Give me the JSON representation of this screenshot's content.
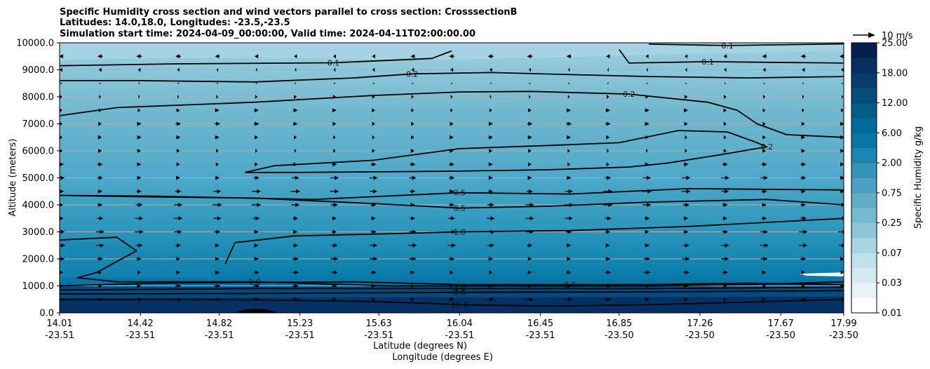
{
  "chart_data": {
    "type": "contour",
    "title_lines": [
      "Specific Humidity cross section and wind vectors parallel to cross section: CrosssectionB",
      "Latitudes: 14.0,18.0, Longitudes: -23.5,-23.5",
      "Simulation start time: 2024-04-09_00:00:00, Valid time: 2024-04-11T02:00:00.00"
    ],
    "ylabel": "Altitude (meters)",
    "xlabel_lat": "Latitude (degrees N)",
    "xlabel_lon": "Longitude (degrees E)",
    "ylim": [
      0,
      10000
    ],
    "yticks": [
      "0.0",
      "1000.0",
      "2000.0",
      "3000.0",
      "4000.0",
      "5000.0",
      "6000.0",
      "7000.0",
      "8000.0",
      "9000.0",
      "10000.0"
    ],
    "xticks": [
      {
        "lat": "14.01",
        "lon": "-23.51"
      },
      {
        "lat": "14.42",
        "lon": "-23.51"
      },
      {
        "lat": "14.82",
        "lon": "-23.51"
      },
      {
        "lat": "15.23",
        "lon": "-23.51"
      },
      {
        "lat": "15.63",
        "lon": "-23.51"
      },
      {
        "lat": "16.04",
        "lon": "-23.51"
      },
      {
        "lat": "16.45",
        "lon": "-23.51"
      },
      {
        "lat": "16.85",
        "lon": "-23.50"
      },
      {
        "lat": "17.26",
        "lon": "-23.50"
      },
      {
        "lat": "17.67",
        "lon": "-23.50"
      },
      {
        "lat": "17.99",
        "lon": "-23.50"
      }
    ],
    "colorbar": {
      "label": "Specific Humidity g/kg",
      "tick_labels": [
        "0.01",
        "0.03",
        "0.07",
        "0.25",
        "0.75",
        "2.00",
        "6.00",
        "12.00",
        "18.00",
        "25.00"
      ],
      "levels": [
        0.01,
        0.02,
        0.03,
        0.05,
        0.07,
        0.1,
        0.25,
        0.5,
        0.75,
        1.0,
        2.0,
        4.0,
        6.0,
        8.0,
        12.0,
        15.0,
        18.0,
        21.0,
        25.0
      ],
      "colors": [
        "#ffffff",
        "#e8f3f6",
        "#d4eaf0",
        "#c0e0ea",
        "#a9d3e1",
        "#8fc6d7",
        "#77b9ce",
        "#62adc8",
        "#4da1c0",
        "#3593b8",
        "#1c85b0",
        "#0877a6",
        "#026a98",
        "#035b88",
        "#054c79",
        "#063d6a",
        "#07305e",
        "#051f4e"
      ]
    },
    "quiver_key": "10 m/s",
    "contour_lines": [
      {
        "level": "0.1",
        "path": [
          [
            14.01,
            9150
          ],
          [
            14.6,
            9220
          ],
          [
            15.4,
            9260
          ],
          [
            15.9,
            9420
          ],
          [
            16.0,
            9700
          ]
        ]
      },
      {
        "level": "0.1",
        "path": [
          [
            16.85,
            9750
          ],
          [
            16.9,
            9250
          ],
          [
            17.3,
            9300
          ],
          [
            17.99,
            9250
          ]
        ]
      },
      {
        "level": "0.1",
        "path": [
          [
            17.0,
            9950
          ],
          [
            17.4,
            9900
          ],
          [
            17.99,
            9960
          ]
        ]
      },
      {
        "level": "0.2",
        "path": [
          [
            14.01,
            8600
          ],
          [
            14.4,
            8600
          ],
          [
            15.0,
            8550
          ],
          [
            15.5,
            8700
          ],
          [
            15.8,
            8850
          ],
          [
            16.2,
            8900
          ],
          [
            17.0,
            8750
          ],
          [
            17.5,
            8700
          ],
          [
            17.99,
            8750
          ]
        ]
      },
      {
        "level": "0.2",
        "path": [
          [
            14.01,
            7300
          ],
          [
            14.3,
            7600
          ],
          [
            15.0,
            7800
          ],
          [
            15.6,
            8050
          ],
          [
            16.04,
            8180
          ],
          [
            16.4,
            8200
          ],
          [
            16.9,
            8100
          ],
          [
            17.3,
            7800
          ],
          [
            17.45,
            7500
          ],
          [
            17.55,
            7000
          ],
          [
            17.7,
            6600
          ],
          [
            17.99,
            6500
          ]
        ]
      },
      {
        "level": "0.2",
        "path": [
          [
            14.95,
            5200
          ],
          [
            15.1,
            5450
          ],
          [
            15.6,
            5650
          ],
          [
            16.04,
            6080
          ],
          [
            16.5,
            6200
          ],
          [
            16.85,
            6300
          ],
          [
            17.15,
            6750
          ],
          [
            17.4,
            6700
          ],
          [
            17.55,
            6300
          ],
          [
            17.6,
            6150
          ],
          [
            17.4,
            5900
          ],
          [
            17.1,
            5550
          ],
          [
            16.9,
            5400
          ],
          [
            16.5,
            5300
          ],
          [
            16.04,
            5250
          ],
          [
            15.6,
            5220
          ],
          [
            15.2,
            5200
          ],
          [
            14.95,
            5200
          ]
        ]
      },
      {
        "level": "0.5",
        "path": [
          [
            14.01,
            4350
          ],
          [
            14.4,
            4300
          ],
          [
            15.0,
            4250
          ],
          [
            15.6,
            4050
          ],
          [
            16.04,
            3880
          ],
          [
            16.5,
            3950
          ],
          [
            17.0,
            4100
          ],
          [
            17.6,
            4200
          ],
          [
            17.99,
            4000
          ]
        ]
      },
      {
        "level": "0.5",
        "path": [
          [
            14.01,
            4350
          ],
          [
            14.5,
            4320
          ],
          [
            15.3,
            4200
          ],
          [
            16.04,
            4450
          ],
          [
            16.6,
            4400
          ],
          [
            17.2,
            4600
          ],
          [
            17.99,
            4550
          ]
        ]
      },
      {
        "level": "1.0",
        "path": [
          [
            14.01,
            2700
          ],
          [
            14.3,
            2800
          ],
          [
            14.4,
            2300
          ],
          [
            14.2,
            1500
          ],
          [
            14.1,
            1300
          ],
          [
            14.3,
            1150
          ],
          [
            15.0,
            1150
          ],
          [
            15.7,
            1000
          ],
          [
            16.04,
            1000
          ],
          [
            17.0,
            1000
          ],
          [
            17.5,
            1050
          ],
          [
            17.99,
            1150
          ]
        ]
      },
      {
        "level": "1.0",
        "path": [
          [
            14.85,
            1800
          ],
          [
            14.9,
            2600
          ],
          [
            15.2,
            2850
          ],
          [
            15.8,
            2950
          ],
          [
            16.04,
            3000
          ],
          [
            16.6,
            3050
          ],
          [
            17.2,
            3200
          ],
          [
            17.99,
            3500
          ]
        ]
      },
      {
        "level": "2.0",
        "path": [
          [
            14.01,
            1000
          ],
          [
            14.5,
            1100
          ],
          [
            15.5,
            1150
          ],
          [
            16.04,
            1050
          ],
          [
            16.6,
            1050
          ],
          [
            17.0,
            1050
          ],
          [
            17.5,
            1100
          ],
          [
            17.99,
            1050
          ]
        ]
      },
      {
        "level": "4.0",
        "path": [
          [
            14.01,
            850
          ],
          [
            15.0,
            900
          ],
          [
            16.04,
            900
          ],
          [
            17.0,
            900
          ],
          [
            17.99,
            950
          ]
        ]
      },
      {
        "level": "8.0",
        "path": [
          [
            14.01,
            700
          ],
          [
            15.0,
            720
          ],
          [
            16.04,
            760
          ],
          [
            17.0,
            780
          ],
          [
            17.99,
            820
          ]
        ]
      },
      {
        "level": "12.0",
        "path": [
          [
            14.01,
            500
          ],
          [
            15.0,
            480
          ],
          [
            15.6,
            420
          ],
          [
            15.9,
            350
          ],
          [
            16.04,
            300
          ],
          [
            16.5,
            250
          ],
          [
            17.0,
            300
          ],
          [
            17.99,
            500
          ]
        ]
      }
    ],
    "wind_arrows": {
      "rows_altitude_m": [
        9500,
        9000,
        8500,
        8000,
        7500,
        7000,
        6500,
        6000,
        5500,
        5000,
        4500,
        4000,
        3500,
        3000,
        2500,
        2000,
        1500,
        1000,
        500
      ],
      "row_mean_u_ms": [
        -3.0,
        -1.5,
        -0.5,
        1.5,
        2.5,
        3.0,
        2.5,
        2.0,
        3.0,
        4.5,
        5.0,
        5.0,
        4.5,
        4.5,
        4.5,
        4.0,
        3.5,
        3.5,
        4.0
      ]
    }
  }
}
